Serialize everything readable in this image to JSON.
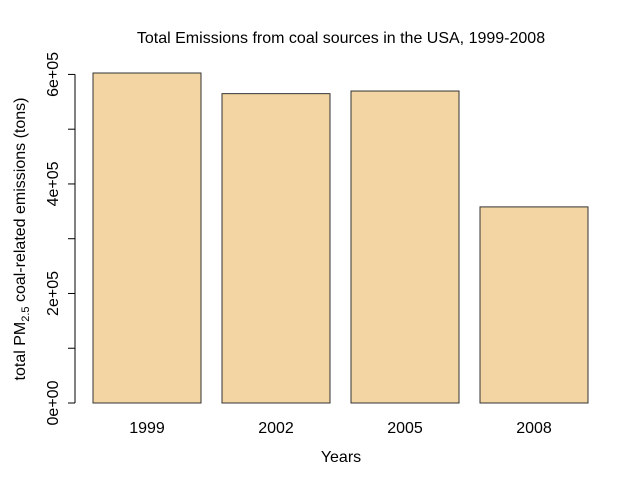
{
  "chart_data": {
    "type": "bar",
    "title": "Total Emissions from coal sources in the USA, 1999-2008",
    "xlabel": "Years",
    "ylabel": {
      "prefix": "total PM",
      "subscript": "2.5",
      "suffix": " coal-related emissions (tons)"
    },
    "categories": [
      "1999",
      "2002",
      "2005",
      "2008"
    ],
    "values": [
      602600,
      564900,
      569700,
      358100
    ],
    "ylim": [
      0,
      602600
    ],
    "y_ticks": [
      0,
      100000,
      200000,
      300000,
      400000,
      500000,
      600000
    ],
    "y_tick_labels": [
      {
        "value": 0,
        "label": "0e+00"
      },
      {
        "value": 200000,
        "label": "2e+05"
      },
      {
        "value": 400000,
        "label": "4e+05"
      },
      {
        "value": 600000,
        "label": "6e+05"
      }
    ],
    "bar_fill": "#f2d5a3",
    "bar_stroke": "#333333",
    "grid": false,
    "legend": "none"
  }
}
